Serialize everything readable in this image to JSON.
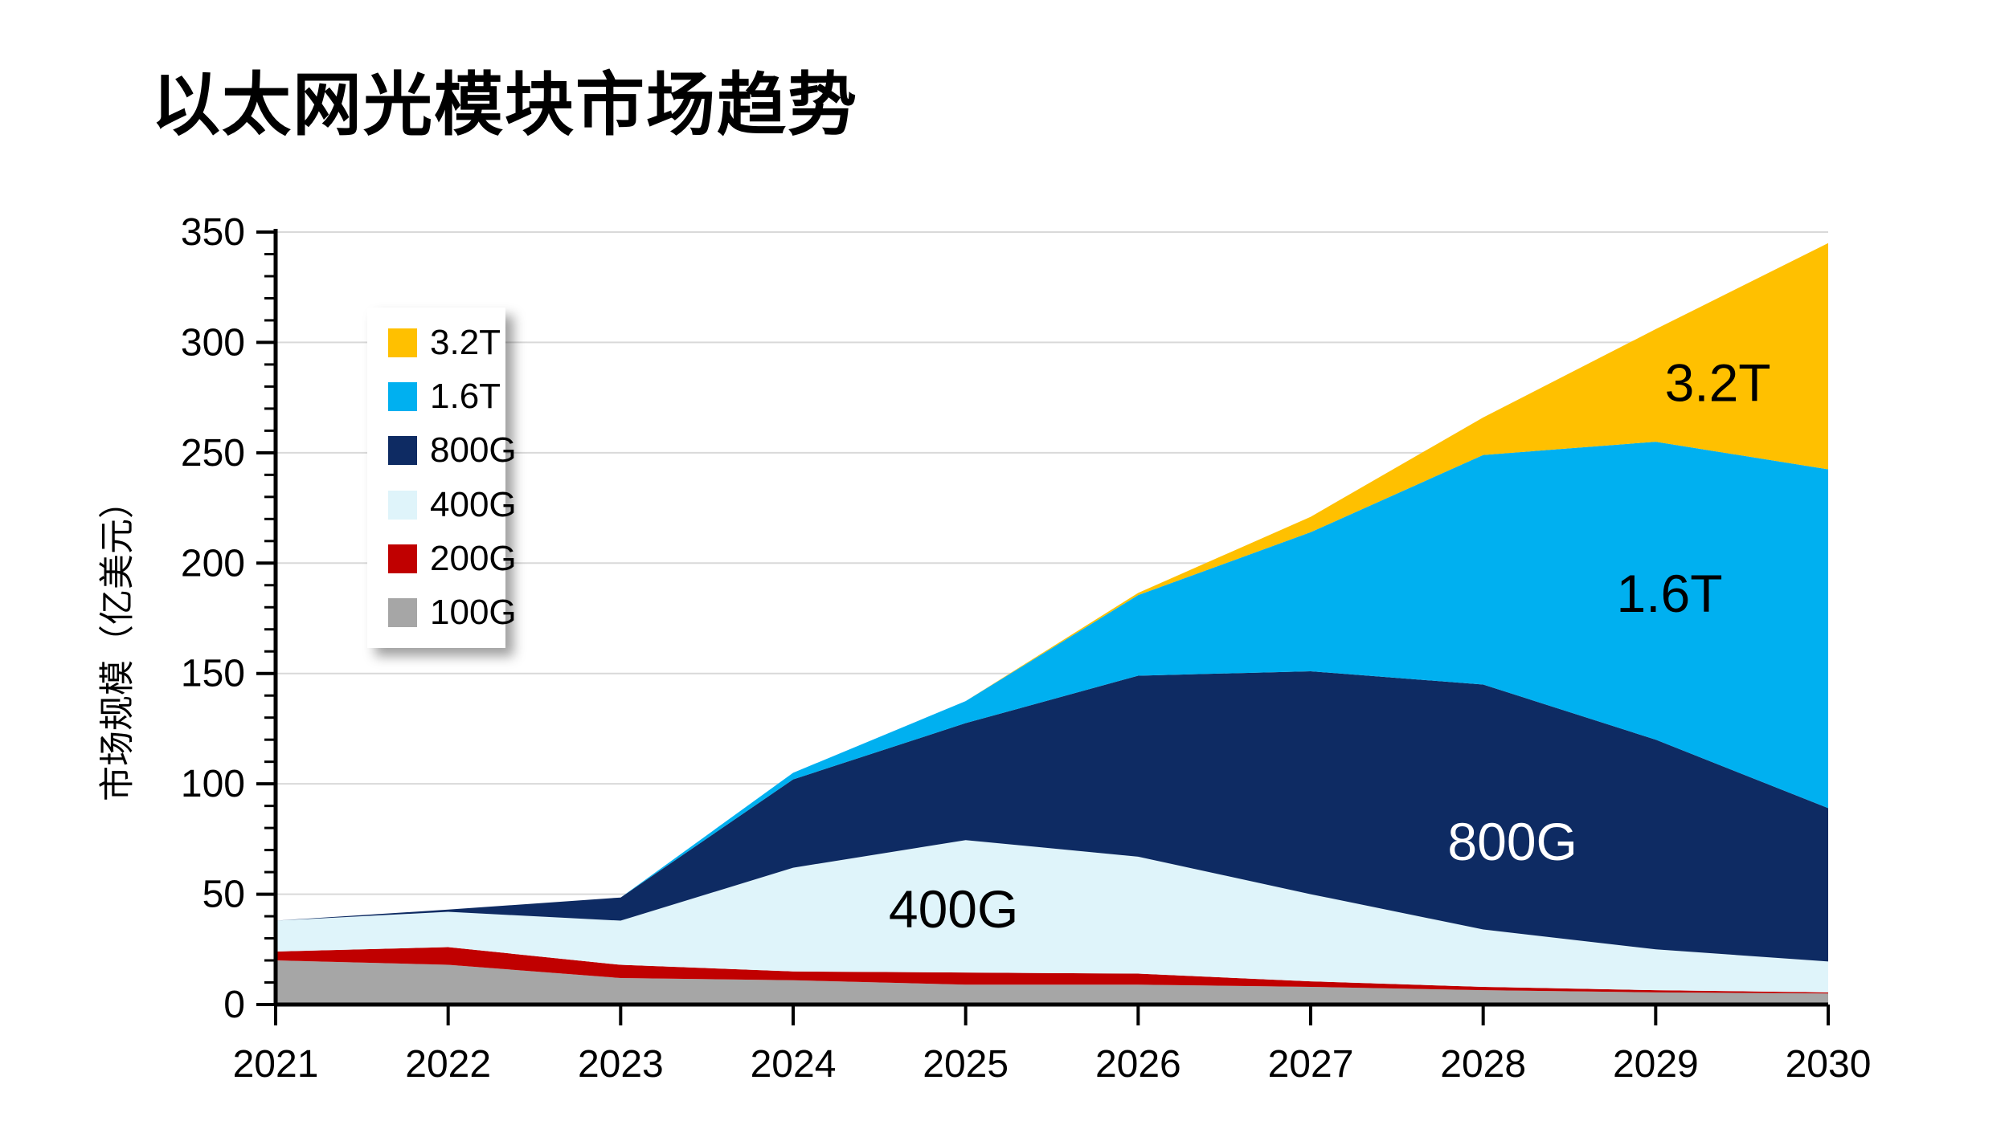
{
  "title": "以太网光模块市场趋势",
  "y_axis": {
    "title": "市场规模（亿美元）",
    "min": 0,
    "max": 350,
    "major_step": 50,
    "minor_step": 10,
    "tick_labels": [
      "0",
      "50",
      "100",
      "150",
      "200",
      "250",
      "300",
      "350"
    ]
  },
  "x_axis": {
    "tick_labels": [
      "2021",
      "2022",
      "2023",
      "2024",
      "2025",
      "2026",
      "2027",
      "2028",
      "2029",
      "2030"
    ]
  },
  "legend": {
    "items": [
      {
        "label": "3.2T",
        "color": "#FFC000"
      },
      {
        "label": "1.6T",
        "color": "#00B0F0"
      },
      {
        "label": "800G",
        "color": "#0E2B63"
      },
      {
        "label": "400G",
        "color": "#DFF4FA"
      },
      {
        "label": "200G",
        "color": "#C00000"
      },
      {
        "label": "100G",
        "color": "#A6A6A6"
      }
    ]
  },
  "chart_data": {
    "type": "area",
    "stacked": true,
    "title": "以太网光模块市场趋势",
    "xlabel": "",
    "ylabel": "市场规模（亿美元）",
    "ylim": [
      0,
      350
    ],
    "grid": "horizontal",
    "legend_position": "upper-left-box",
    "x": [
      2021,
      2022,
      2023,
      2024,
      2025,
      2026,
      2027,
      2028,
      2029,
      2030
    ],
    "series": [
      {
        "name": "100G",
        "color": "#A6A6A6",
        "values": [
          20,
          18,
          12,
          11,
          9,
          9,
          8,
          6.5,
          5.5,
          5
        ]
      },
      {
        "name": "200G",
        "color": "#C00000",
        "values": [
          4,
          8,
          6,
          4,
          5.5,
          5,
          2.5,
          1.5,
          1,
          0.5
        ]
      },
      {
        "name": "400G",
        "color": "#DFF4FA",
        "values": [
          14,
          16,
          20,
          47,
          60,
          53,
          39.5,
          26,
          18.5,
          14
        ]
      },
      {
        "name": "800G",
        "color": "#0E2B63",
        "values": [
          0,
          1,
          10.5,
          40,
          53,
          82,
          101,
          111,
          95,
          69.5
        ]
      },
      {
        "name": "1.6T",
        "color": "#00B0F0",
        "values": [
          0,
          0,
          0,
          3,
          10,
          36.5,
          63,
          104,
          135,
          153.5
        ]
      },
      {
        "name": "3.2T",
        "color": "#FFC000",
        "values": [
          0,
          0,
          0,
          0,
          0,
          1,
          7,
          17,
          51,
          102.5
        ]
      }
    ],
    "totals": [
      38,
      43,
      48.5,
      105,
      137.5,
      186.5,
      221,
      266,
      306,
      345
    ],
    "area_labels": [
      {
        "text": "400G",
        "year": 2024.93,
        "value": 43,
        "color": "#000000"
      },
      {
        "text": "800G",
        "year": 2028.17,
        "value": 73.5,
        "color": "#ffffff"
      },
      {
        "text": "1.6T",
        "year": 2029.08,
        "value": 186,
        "color": "#000000"
      },
      {
        "text": "3.2T",
        "year": 2029.36,
        "value": 281.5,
        "color": "#000000"
      }
    ]
  }
}
